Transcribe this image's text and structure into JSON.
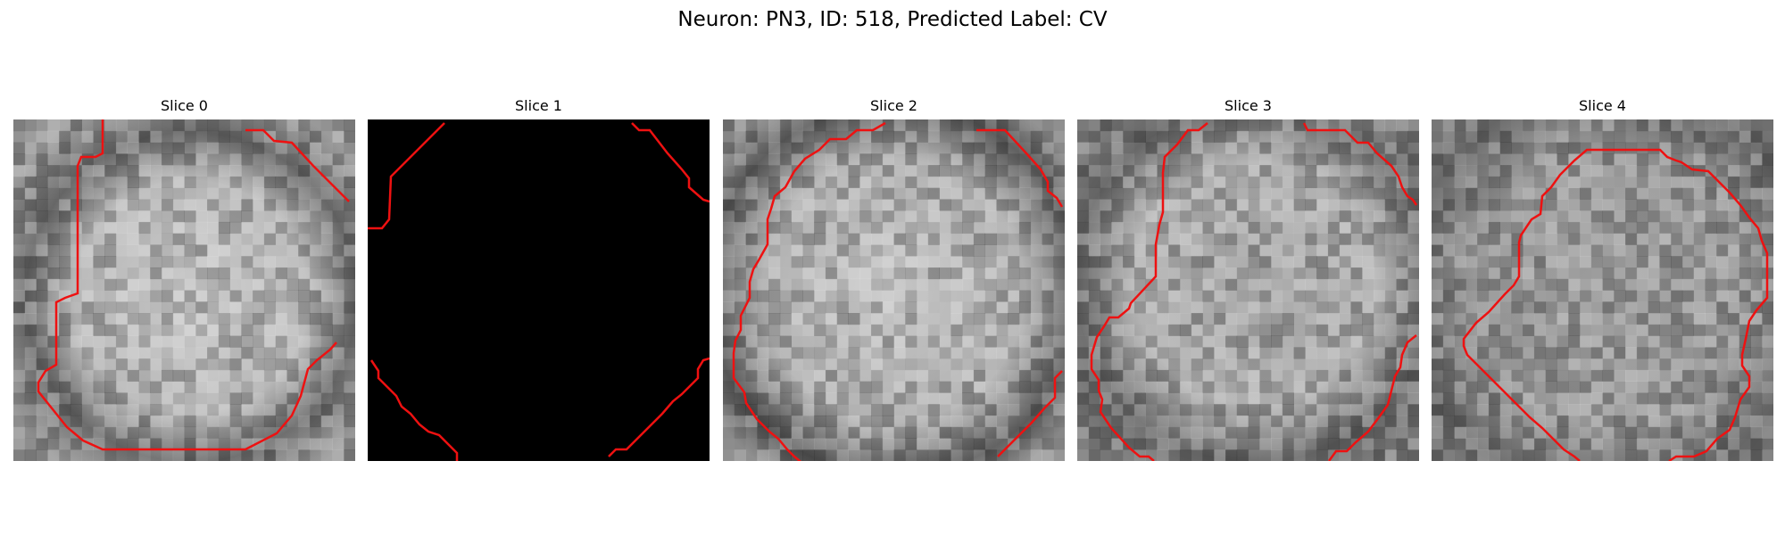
{
  "figure": {
    "suptitle": "Neuron: PN3, ID: 518, Predicted Label: CV",
    "contour_color": "#ee1111"
  },
  "panels": [
    {
      "title": "Slice 0",
      "background": "textured-gray"
    },
    {
      "title": "Slice 1",
      "background": "black"
    },
    {
      "title": "Slice 2",
      "background": "textured-gray"
    },
    {
      "title": "Slice 3",
      "background": "textured-gray"
    },
    {
      "title": "Slice 4",
      "background": "textured-gray"
    }
  ]
}
